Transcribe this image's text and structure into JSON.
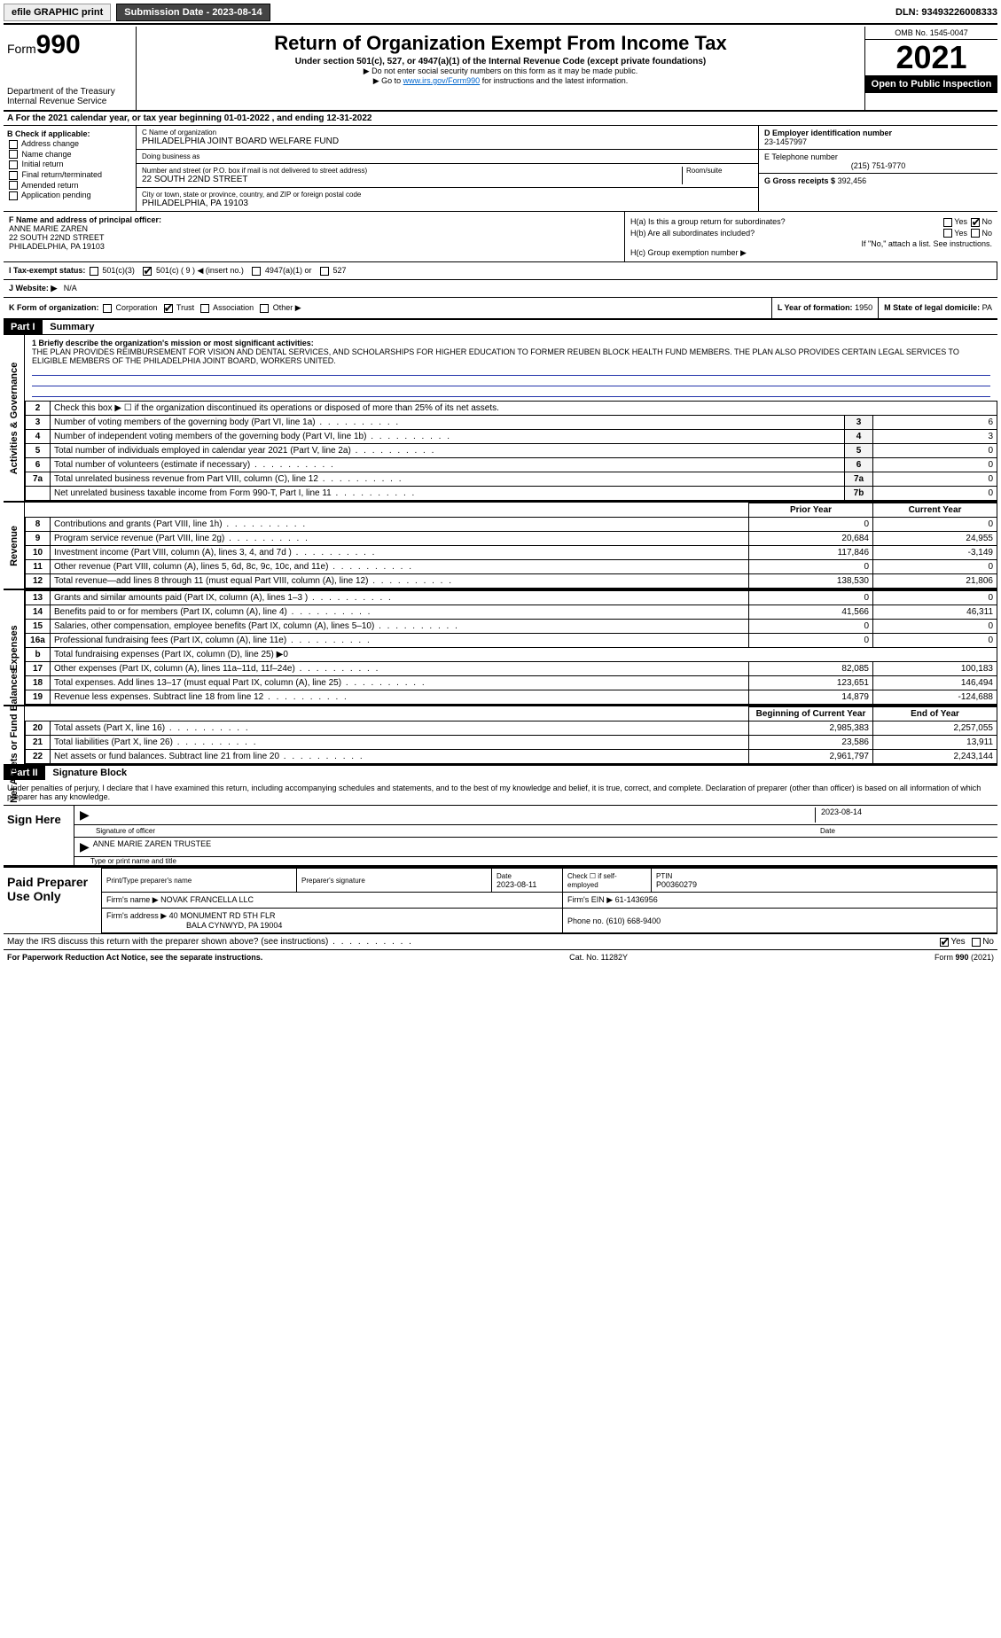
{
  "topbar": {
    "efile": "efile GRAPHIC print",
    "submission_label": "Submission Date - 2023-08-14",
    "dln": "DLN: 93493226008333"
  },
  "header": {
    "form_word": "Form",
    "form_num": "990",
    "title": "Return of Organization Exempt From Income Tax",
    "subtitle": "Under section 501(c), 527, or 4947(a)(1) of the Internal Revenue Code (except private foundations)",
    "note1": "▶ Do not enter social security numbers on this form as it may be made public.",
    "note2_pre": "▶ Go to ",
    "note2_link": "www.irs.gov/Form990",
    "note2_post": " for instructions and the latest information.",
    "dept": "Department of the Treasury",
    "irs": "Internal Revenue Service",
    "omb": "OMB No. 1545-0047",
    "year": "2021",
    "open": "Open to Public Inspection"
  },
  "row_a": "A For the 2021 calendar year, or tax year beginning 01-01-2022    , and ending 12-31-2022",
  "col_b": {
    "title": "B Check if applicable:",
    "items": [
      "Address change",
      "Name change",
      "Initial return",
      "Final return/terminated",
      "Amended return",
      "Application pending"
    ]
  },
  "col_c": {
    "name_lbl": "C Name of organization",
    "name": "PHILADELPHIA JOINT BOARD WELFARE FUND",
    "dba_lbl": "Doing business as",
    "dba": "",
    "addr_lbl": "Number and street (or P.O. box if mail is not delivered to street address)",
    "room_lbl": "Room/suite",
    "addr": "22 SOUTH 22ND STREET",
    "city_lbl": "City or town, state or province, country, and ZIP or foreign postal code",
    "city": "PHILADELPHIA, PA  19103"
  },
  "col_d": {
    "ein_lbl": "D Employer identification number",
    "ein": "23-1457997",
    "tel_lbl": "E Telephone number",
    "tel": "(215) 751-9770",
    "gross_lbl": "G Gross receipts $",
    "gross": "392,456"
  },
  "col_f": {
    "lbl": "F  Name and address of principal officer:",
    "name": "ANNE MARIE ZAREN",
    "addr1": "22 SOUTH 22ND STREET",
    "addr2": "PHILADELPHIA, PA  19103"
  },
  "col_h": {
    "ha": "H(a)  Is this a group return for subordinates?",
    "hb": "H(b)  Are all subordinates included?",
    "hb_note": "If \"No,\" attach a list. See instructions.",
    "hc": "H(c)  Group exemption number ▶",
    "yes": "Yes",
    "no": "No"
  },
  "row_i": {
    "lbl": "I   Tax-exempt status:",
    "opts": [
      "501(c)(3)",
      "501(c) ( 9 ) ◀ (insert no.)",
      "4947(a)(1) or",
      "527"
    ]
  },
  "row_j": {
    "lbl": "J   Website: ▶",
    "val": "N/A"
  },
  "row_k": {
    "lbl": "K Form of organization:",
    "opts": [
      "Corporation",
      "Trust",
      "Association",
      "Other ▶"
    ]
  },
  "row_l": {
    "lbl": "L Year of formation:",
    "val": "1950"
  },
  "row_m": {
    "lbl": "M State of legal domicile:",
    "val": "PA"
  },
  "part1": {
    "hdr": "Part I",
    "title": "Summary"
  },
  "mission": {
    "lbl": "1  Briefly describe the organization's mission or most significant activities:",
    "text": "THE PLAN PROVIDES REIMBURSEMENT FOR VISION AND DENTAL SERVICES, AND SCHOLARSHIPS FOR HIGHER EDUCATION TO FORMER REUBEN BLOCK HEALTH FUND MEMBERS. THE PLAN ALSO PROVIDES CERTAIN LEGAL SERVICES TO ELIGIBLE MEMBERS OF THE PHILADELPHIA JOINT BOARD, WORKERS UNITED."
  },
  "gov_rows": [
    {
      "n": "2",
      "d": "Check this box ▶ ☐  if the organization discontinued its operations or disposed of more than 25% of its net assets.",
      "box": "",
      "v": ""
    },
    {
      "n": "3",
      "d": "Number of voting members of the governing body (Part VI, line 1a)",
      "box": "3",
      "v": "6"
    },
    {
      "n": "4",
      "d": "Number of independent voting members of the governing body (Part VI, line 1b)",
      "box": "4",
      "v": "3"
    },
    {
      "n": "5",
      "d": "Total number of individuals employed in calendar year 2021 (Part V, line 2a)",
      "box": "5",
      "v": "0"
    },
    {
      "n": "6",
      "d": "Total number of volunteers (estimate if necessary)",
      "box": "6",
      "v": "0"
    },
    {
      "n": "7a",
      "d": "Total unrelated business revenue from Part VIII, column (C), line 12",
      "box": "7a",
      "v": "0"
    },
    {
      "n": "",
      "d": "Net unrelated business taxable income from Form 990-T, Part I, line 11",
      "box": "7b",
      "v": "0"
    }
  ],
  "col_hdrs": {
    "prior": "Prior Year",
    "current": "Current Year"
  },
  "rev_rows": [
    {
      "n": "8",
      "d": "Contributions and grants (Part VIII, line 1h)",
      "p": "0",
      "c": "0"
    },
    {
      "n": "9",
      "d": "Program service revenue (Part VIII, line 2g)",
      "p": "20,684",
      "c": "24,955"
    },
    {
      "n": "10",
      "d": "Investment income (Part VIII, column (A), lines 3, 4, and 7d )",
      "p": "117,846",
      "c": "-3,149"
    },
    {
      "n": "11",
      "d": "Other revenue (Part VIII, column (A), lines 5, 6d, 8c, 9c, 10c, and 11e)",
      "p": "0",
      "c": "0"
    },
    {
      "n": "12",
      "d": "Total revenue—add lines 8 through 11 (must equal Part VIII, column (A), line 12)",
      "p": "138,530",
      "c": "21,806"
    }
  ],
  "exp_rows": [
    {
      "n": "13",
      "d": "Grants and similar amounts paid (Part IX, column (A), lines 1–3 )",
      "p": "0",
      "c": "0"
    },
    {
      "n": "14",
      "d": "Benefits paid to or for members (Part IX, column (A), line 4)",
      "p": "41,566",
      "c": "46,311"
    },
    {
      "n": "15",
      "d": "Salaries, other compensation, employee benefits (Part IX, column (A), lines 5–10)",
      "p": "0",
      "c": "0"
    },
    {
      "n": "16a",
      "d": "Professional fundraising fees (Part IX, column (A), line 11e)",
      "p": "0",
      "c": "0"
    },
    {
      "n": "b",
      "d": "Total fundraising expenses (Part IX, column (D), line 25) ▶0",
      "p": "",
      "c": ""
    },
    {
      "n": "17",
      "d": "Other expenses (Part IX, column (A), lines 11a–11d, 11f–24e)",
      "p": "82,085",
      "c": "100,183"
    },
    {
      "n": "18",
      "d": "Total expenses. Add lines 13–17 (must equal Part IX, column (A), line 25)",
      "p": "123,651",
      "c": "146,494"
    },
    {
      "n": "19",
      "d": "Revenue less expenses. Subtract line 18 from line 12",
      "p": "14,879",
      "c": "-124,688"
    }
  ],
  "na_hdrs": {
    "beg": "Beginning of Current Year",
    "end": "End of Year"
  },
  "na_rows": [
    {
      "n": "20",
      "d": "Total assets (Part X, line 16)",
      "p": "2,985,383",
      "c": "2,257,055"
    },
    {
      "n": "21",
      "d": "Total liabilities (Part X, line 26)",
      "p": "23,586",
      "c": "13,911"
    },
    {
      "n": "22",
      "d": "Net assets or fund balances. Subtract line 21 from line 20",
      "p": "2,961,797",
      "c": "2,243,144"
    }
  ],
  "vlabels": {
    "gov": "Activities & Governance",
    "rev": "Revenue",
    "exp": "Expenses",
    "na": "Net Assets or Fund Balances"
  },
  "part2": {
    "hdr": "Part II",
    "title": "Signature Block"
  },
  "sig": {
    "decl": "Under penalties of perjury, I declare that I have examined this return, including accompanying schedules and statements, and to the best of my knowledge and belief, it is true, correct, and complete. Declaration of preparer (other than officer) is based on all information of which preparer has any knowledge.",
    "sign_here": "Sign Here",
    "sig_officer": "Signature of officer",
    "date": "Date",
    "sig_date": "2023-08-14",
    "name": "ANNE MARIE ZAREN  TRUSTEE",
    "type_name": "Type or print name and title"
  },
  "paid": {
    "title": "Paid Preparer Use Only",
    "prep_name_lbl": "Print/Type preparer's name",
    "prep_sig_lbl": "Preparer's signature",
    "date_lbl": "Date",
    "date": "2023-08-11",
    "check_lbl": "Check ☐ if self-employed",
    "ptin_lbl": "PTIN",
    "ptin": "P00360279",
    "firm_name_lbl": "Firm's name    ▶",
    "firm_name": "NOVAK FRANCELLA LLC",
    "firm_ein_lbl": "Firm's EIN ▶",
    "firm_ein": "61-1436956",
    "firm_addr_lbl": "Firm's address ▶",
    "firm_addr": "40 MONUMENT RD 5TH FLR",
    "firm_city": "BALA CYNWYD, PA  19004",
    "phone_lbl": "Phone no.",
    "phone": "(610) 668-9400"
  },
  "may_irs": "May the IRS discuss this return with the preparer shown above? (see instructions)",
  "footer": {
    "pra": "For Paperwork Reduction Act Notice, see the separate instructions.",
    "cat": "Cat. No. 11282Y",
    "form": "Form 990 (2021)"
  }
}
